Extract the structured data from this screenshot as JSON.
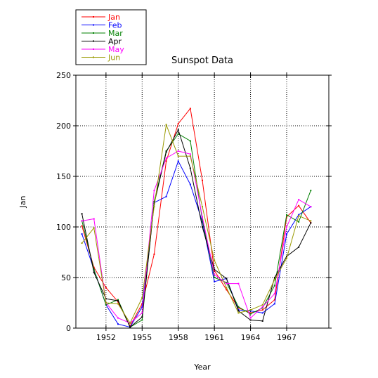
{
  "chart_data": {
    "type": "line",
    "title": "Sunspot Data",
    "xlabel": "Year",
    "ylabel": "Jan",
    "xlim": [
      1949.5,
      1970.5
    ],
    "ylim": [
      0,
      250
    ],
    "xticks": [
      1952,
      1955,
      1958,
      1961,
      1964,
      1967
    ],
    "xtick_labels": [
      "1952",
      "1955",
      "1958",
      "1961",
      "1964",
      "1967"
    ],
    "yticks": [
      0,
      50,
      100,
      150,
      200,
      250
    ],
    "ytick_labels": [
      "0",
      "50",
      "100",
      "150",
      "200",
      "250"
    ],
    "grid": true,
    "legend_position": "top-left (outside)",
    "x": [
      1950,
      1951,
      1952,
      1953,
      1954,
      1955,
      1956,
      1957,
      1958,
      1959,
      1960,
      1961,
      1962,
      1963,
      1964,
      1965,
      1966,
      1967,
      1968,
      1969
    ],
    "series": [
      {
        "name": "Jan",
        "color": "#ff0000",
        "values": [
          101,
          60,
          40,
          26,
          2,
          24,
          73,
          165,
          202,
          217,
          146,
          57,
          38,
          20,
          15,
          18,
          28,
          110,
          121,
          104
        ]
      },
      {
        "name": "Feb",
        "color": "#0000ff",
        "values": [
          93,
          58,
          23,
          4,
          1,
          21,
          124,
          130,
          165,
          142,
          105,
          46,
          49,
          18,
          17,
          15,
          24,
          93,
          112,
          120
        ]
      },
      {
        "name": "Mar",
        "color": "#008000",
        "values": [
          106,
          58,
          23,
          28,
          1,
          8,
          125,
          175,
          192,
          185,
          107,
          50,
          45,
          21,
          14,
          20,
          42,
          112,
          105,
          136
        ]
      },
      {
        "name": "Apr",
        "color": "#000000",
        "values": [
          113,
          55,
          29,
          27,
          1,
          11,
          123,
          174,
          196,
          158,
          100,
          58,
          49,
          17,
          8,
          7,
          50,
          71,
          80,
          104
        ]
      },
      {
        "name": "May",
        "color": "#ff00ff",
        "values": [
          106,
          108,
          25,
          10,
          5,
          15,
          136,
          168,
          175,
          172,
          110,
          53,
          44,
          44,
          10,
          21,
          34,
          100,
          127,
          120
        ]
      },
      {
        "name": "Jun",
        "color": "#999900",
        "values": [
          84,
          99,
          25,
          24,
          5,
          30,
          120,
          201,
          170,
          170,
          120,
          67,
          40,
          15,
          18,
          23,
          48,
          69,
          111,
          106
        ]
      }
    ]
  }
}
